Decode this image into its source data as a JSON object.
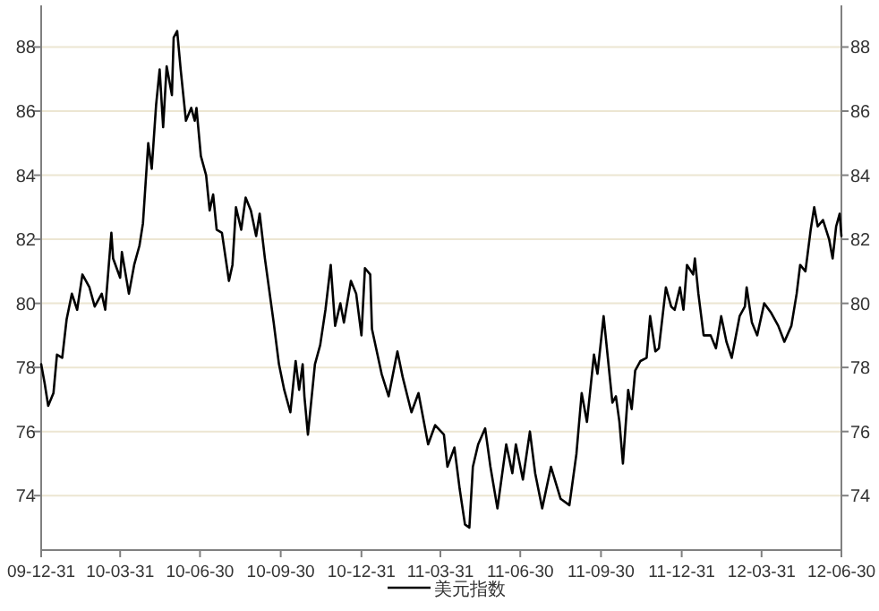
{
  "chart_data": {
    "type": "line",
    "legend": "bottom",
    "grid": "y",
    "ylim": [
      72.3,
      89.3
    ],
    "yticks": [
      74,
      76,
      78,
      80,
      82,
      84,
      86,
      88
    ],
    "y2lim": [
      72.3,
      89.3
    ],
    "y2ticks": [
      74,
      76,
      78,
      80,
      82,
      84,
      86,
      88
    ],
    "xlim": [
      "2009-12-31",
      "2012-06-30"
    ],
    "xticks": [
      {
        "value": "2009-12-31",
        "label": "09-12-31"
      },
      {
        "value": "2010-03-31",
        "label": "10-03-31"
      },
      {
        "value": "2010-06-30",
        "label": "10-06-30"
      },
      {
        "value": "2010-09-30",
        "label": "10-09-30"
      },
      {
        "value": "2010-12-31",
        "label": "10-12-31"
      },
      {
        "value": "2011-03-31",
        "label": "11-03-31"
      },
      {
        "value": "2011-06-30",
        "label": "11-06-30"
      },
      {
        "value": "2011-09-30",
        "label": "11-09-30"
      },
      {
        "value": "2011-12-31",
        "label": "11-12-31"
      },
      {
        "value": "2012-03-31",
        "label": "12-03-31"
      },
      {
        "value": "2012-06-30",
        "label": "12-06-30"
      }
    ],
    "x": [
      "2009-12-31",
      "2010-01-04",
      "2010-01-08",
      "2010-01-14",
      "2010-01-18",
      "2010-01-24",
      "2010-01-29",
      "2010-02-04",
      "2010-02-10",
      "2010-02-16",
      "2010-02-24",
      "2010-03-02",
      "2010-03-10",
      "2010-03-14",
      "2010-03-21",
      "2010-03-23",
      "2010-03-31",
      "2010-04-02",
      "2010-04-10",
      "2010-04-16",
      "2010-04-22",
      "2010-04-26",
      "2010-05-02",
      "2010-05-06",
      "2010-05-11",
      "2010-05-15",
      "2010-05-19",
      "2010-05-23",
      "2010-05-29",
      "2010-05-31",
      "2010-06-04",
      "2010-06-08",
      "2010-06-14",
      "2010-06-20",
      "2010-06-24",
      "2010-06-26",
      "2010-07-01",
      "2010-07-07",
      "2010-07-11",
      "2010-07-15",
      "2010-07-19",
      "2010-07-25",
      "2010-08-02",
      "2010-08-06",
      "2010-08-10",
      "2010-08-16",
      "2010-08-21",
      "2010-08-27",
      "2010-09-02",
      "2010-09-06",
      "2010-09-12",
      "2010-09-22",
      "2010-09-28",
      "2010-10-04",
      "2010-10-11",
      "2010-10-17",
      "2010-10-21",
      "2010-10-25",
      "2010-10-27",
      "2010-10-31",
      "2010-11-08",
      "2010-11-14",
      "2010-11-20",
      "2010-11-26",
      "2010-12-01",
      "2010-12-07",
      "2010-12-11",
      "2010-12-19",
      "2010-12-25",
      "2010-12-31",
      "2011-01-04",
      "2011-01-10",
      "2011-01-12",
      "2011-01-23",
      "2011-01-31",
      "2011-02-10",
      "2011-02-16",
      "2011-02-26",
      "2011-03-06",
      "2011-03-17",
      "2011-03-25",
      "2011-04-04",
      "2011-04-08",
      "2011-04-16",
      "2011-04-22",
      "2011-04-28",
      "2011-05-03",
      "2011-05-07",
      "2011-05-13",
      "2011-05-21",
      "2011-05-27",
      "2011-06-04",
      "2011-06-14",
      "2011-06-21",
      "2011-06-25",
      "2011-07-03",
      "2011-07-11",
      "2011-07-17",
      "2011-07-25",
      "2011-08-04",
      "2011-08-15",
      "2011-08-25",
      "2011-09-02",
      "2011-09-08",
      "2011-09-14",
      "2011-09-22",
      "2011-09-26",
      "2011-10-03",
      "2011-10-13",
      "2011-10-17",
      "2011-10-21",
      "2011-10-25",
      "2011-10-31",
      "2011-11-04",
      "2011-11-08",
      "2011-11-14",
      "2011-11-21",
      "2011-11-25",
      "2011-12-01",
      "2011-12-05",
      "2011-12-13",
      "2011-12-19",
      "2011-12-23",
      "2011-12-29",
      "2012-01-02",
      "2012-01-06",
      "2012-01-13",
      "2012-01-15",
      "2012-01-19",
      "2012-01-25",
      "2012-02-02",
      "2012-02-08",
      "2012-02-14",
      "2012-02-20",
      "2012-02-26",
      "2012-03-06",
      "2012-03-12",
      "2012-03-14",
      "2012-03-20",
      "2012-03-26",
      "2012-04-03",
      "2012-04-11",
      "2012-04-19",
      "2012-04-26",
      "2012-05-04",
      "2012-05-10",
      "2012-05-14",
      "2012-05-20",
      "2012-05-26",
      "2012-05-30",
      "2012-06-03",
      "2012-06-09",
      "2012-06-16",
      "2012-06-20",
      "2012-06-24",
      "2012-06-28",
      "2012-06-30"
    ],
    "series": [
      {
        "name": "美元指数",
        "color": "#000000",
        "values": [
          78.1,
          77.5,
          76.8,
          77.2,
          78.4,
          78.3,
          79.5,
          80.3,
          79.8,
          80.9,
          80.5,
          79.9,
          80.3,
          79.8,
          82.2,
          81.4,
          80.8,
          81.6,
          80.3,
          81.2,
          81.8,
          82.5,
          85.0,
          84.2,
          86.2,
          87.3,
          85.5,
          87.4,
          86.5,
          88.3,
          88.5,
          87.3,
          85.7,
          86.1,
          85.7,
          86.1,
          84.6,
          84.0,
          82.9,
          83.4,
          82.3,
          82.2,
          80.7,
          81.2,
          83.0,
          82.3,
          83.3,
          82.9,
          82.1,
          82.8,
          81.4,
          79.4,
          78.1,
          77.3,
          76.6,
          78.2,
          77.3,
          78.1,
          77.1,
          75.9,
          78.1,
          78.7,
          79.8,
          81.2,
          79.3,
          80.0,
          79.4,
          80.7,
          80.3,
          79.0,
          81.1,
          80.9,
          79.2,
          77.8,
          77.1,
          78.5,
          77.7,
          76.6,
          77.2,
          75.6,
          76.2,
          75.9,
          74.9,
          75.5,
          74.2,
          73.1,
          73.0,
          74.9,
          75.6,
          76.1,
          74.9,
          73.6,
          75.6,
          74.7,
          75.6,
          74.5,
          76.0,
          74.7,
          73.6,
          74.9,
          73.9,
          73.7,
          75.3,
          77.2,
          76.3,
          78.4,
          77.8,
          79.6,
          76.9,
          77.1,
          76.3,
          75.0,
          77.3,
          76.7,
          77.9,
          78.2,
          78.3,
          79.6,
          78.5,
          78.6,
          80.5,
          79.9,
          79.8,
          80.5,
          79.8,
          81.2,
          80.9,
          81.4,
          80.3,
          79.0,
          79.0,
          78.6,
          79.6,
          78.8,
          78.3,
          79.6,
          79.9,
          80.5,
          79.4,
          79.0,
          80.0,
          79.7,
          79.3,
          78.8,
          79.3,
          80.3,
          81.2,
          81.0,
          82.3,
          83.0,
          82.4,
          82.6,
          82.0,
          81.4,
          82.4,
          82.8,
          82.1
        ]
      }
    ]
  }
}
